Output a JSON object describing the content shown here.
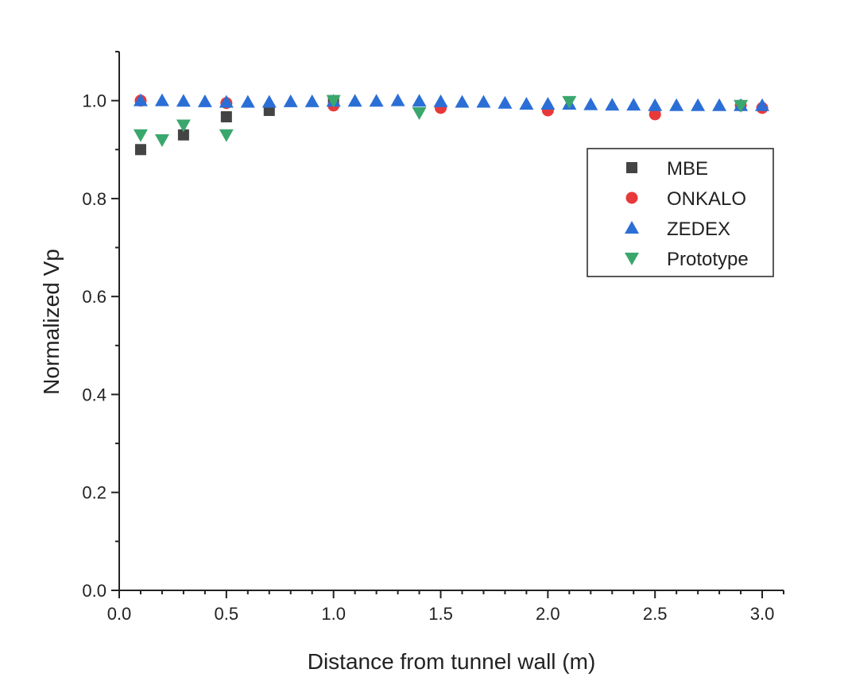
{
  "chart_data": {
    "type": "scatter",
    "title": "",
    "xlabel": "Distance from tunnel wall (m)",
    "ylabel": "Normalized Vp",
    "xlim": [
      0.0,
      3.1
    ],
    "ylim": [
      0.0,
      1.1
    ],
    "x_ticks": [
      "0.0",
      "0.5",
      "1.0",
      "1.5",
      "2.0",
      "2.5",
      "3.0"
    ],
    "y_ticks": [
      "0.0",
      "0.2",
      "0.4",
      "0.6",
      "0.8",
      "1.0"
    ],
    "grid": false,
    "legend_position": "right",
    "series": [
      {
        "name": "MBE",
        "marker": "square",
        "color": "#444444",
        "points": [
          [
            0.1,
            0.9
          ],
          [
            0.3,
            0.93
          ],
          [
            0.5,
            0.967
          ],
          [
            0.7,
            0.98
          ],
          [
            1.0,
            1.0
          ]
        ]
      },
      {
        "name": "ONKALO",
        "marker": "circle",
        "color": "#e8393a",
        "points": [
          [
            0.1,
            1.0
          ],
          [
            0.5,
            0.995
          ],
          [
            1.0,
            0.99
          ],
          [
            1.5,
            0.985
          ],
          [
            2.0,
            0.98
          ],
          [
            2.5,
            0.972
          ],
          [
            2.9,
            0.99
          ],
          [
            3.0,
            0.985
          ]
        ]
      },
      {
        "name": "ZEDEX",
        "marker": "triangle-up",
        "color": "#2b6fd6",
        "points": [
          [
            0.1,
            1.0
          ],
          [
            0.2,
            1.0
          ],
          [
            0.3,
            0.999
          ],
          [
            0.4,
            0.998
          ],
          [
            0.5,
            0.997
          ],
          [
            0.6,
            0.997
          ],
          [
            0.7,
            0.997
          ],
          [
            0.8,
            0.998
          ],
          [
            0.9,
            0.998
          ],
          [
            1.0,
            0.999
          ],
          [
            1.1,
            0.999
          ],
          [
            1.2,
            0.999
          ],
          [
            1.3,
            1.0
          ],
          [
            1.4,
            0.999
          ],
          [
            1.5,
            0.998
          ],
          [
            1.6,
            0.997
          ],
          [
            1.7,
            0.997
          ],
          [
            1.8,
            0.995
          ],
          [
            1.9,
            0.993
          ],
          [
            2.0,
            0.993
          ],
          [
            2.1,
            0.993
          ],
          [
            2.2,
            0.992
          ],
          [
            2.3,
            0.991
          ],
          [
            2.4,
            0.991
          ],
          [
            2.5,
            0.99
          ],
          [
            2.6,
            0.99
          ],
          [
            2.7,
            0.99
          ],
          [
            2.8,
            0.99
          ],
          [
            2.9,
            0.99
          ],
          [
            3.0,
            0.99
          ]
        ]
      },
      {
        "name": "Prototype",
        "marker": "triangle-down",
        "color": "#3aa76d",
        "points": [
          [
            0.1,
            0.93
          ],
          [
            0.2,
            0.92
          ],
          [
            0.3,
            0.95
          ],
          [
            0.5,
            0.93
          ],
          [
            1.0,
            1.0
          ],
          [
            1.4,
            0.975
          ],
          [
            2.1,
            0.998
          ],
          [
            2.9,
            0.99
          ]
        ]
      }
    ]
  }
}
